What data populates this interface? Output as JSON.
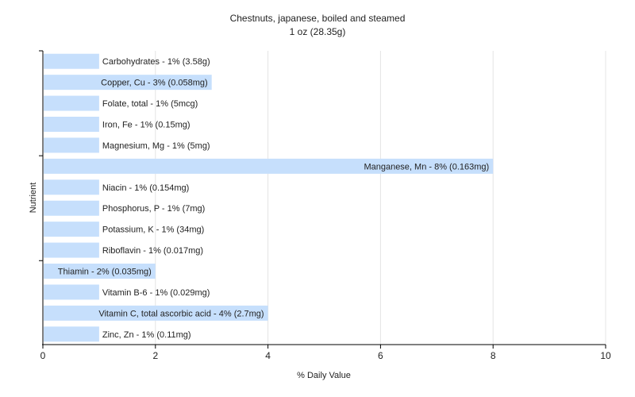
{
  "chart_data": {
    "type": "bar",
    "orientation": "horizontal",
    "title": "Chestnuts, japanese, boiled and steamed",
    "subtitle": "1 oz (28.35g)",
    "xlabel": "% Daily Value",
    "ylabel": "Nutrient",
    "xlim": [
      0,
      10
    ],
    "xticks": [
      0,
      2,
      4,
      6,
      8,
      10
    ],
    "grid": true,
    "bar_color": "#c6dffc",
    "categories": [
      "Carbohydrates",
      "Copper, Cu",
      "Folate, total",
      "Iron, Fe",
      "Magnesium, Mg",
      "Manganese, Mn",
      "Niacin",
      "Phosphorus, P",
      "Potassium, K",
      "Riboflavin",
      "Thiamin",
      "Vitamin B-6",
      "Vitamin C, total ascorbic acid",
      "Zinc, Zn"
    ],
    "values": [
      1,
      3,
      1,
      1,
      1,
      8,
      1,
      1,
      1,
      1,
      2,
      1,
      4,
      1
    ],
    "labels": [
      "Carbohydrates - 1% (3.58g)",
      "Copper, Cu - 3% (0.058mg)",
      "Folate, total - 1% (5mcg)",
      "Iron, Fe - 1% (0.15mg)",
      "Magnesium, Mg - 1% (5mg)",
      "Manganese, Mn - 8% (0.163mg)",
      "Niacin - 1% (0.154mg)",
      "Phosphorus, P - 1% (7mg)",
      "Potassium, K - 1% (34mg)",
      "Riboflavin - 1% (0.017mg)",
      "Thiamin - 2% (0.035mg)",
      "Vitamin B-6 - 1% (0.029mg)",
      "Vitamin C, total ascorbic acid - 4% (2.7mg)",
      "Zinc, Zn - 1% (0.11mg)"
    ]
  }
}
